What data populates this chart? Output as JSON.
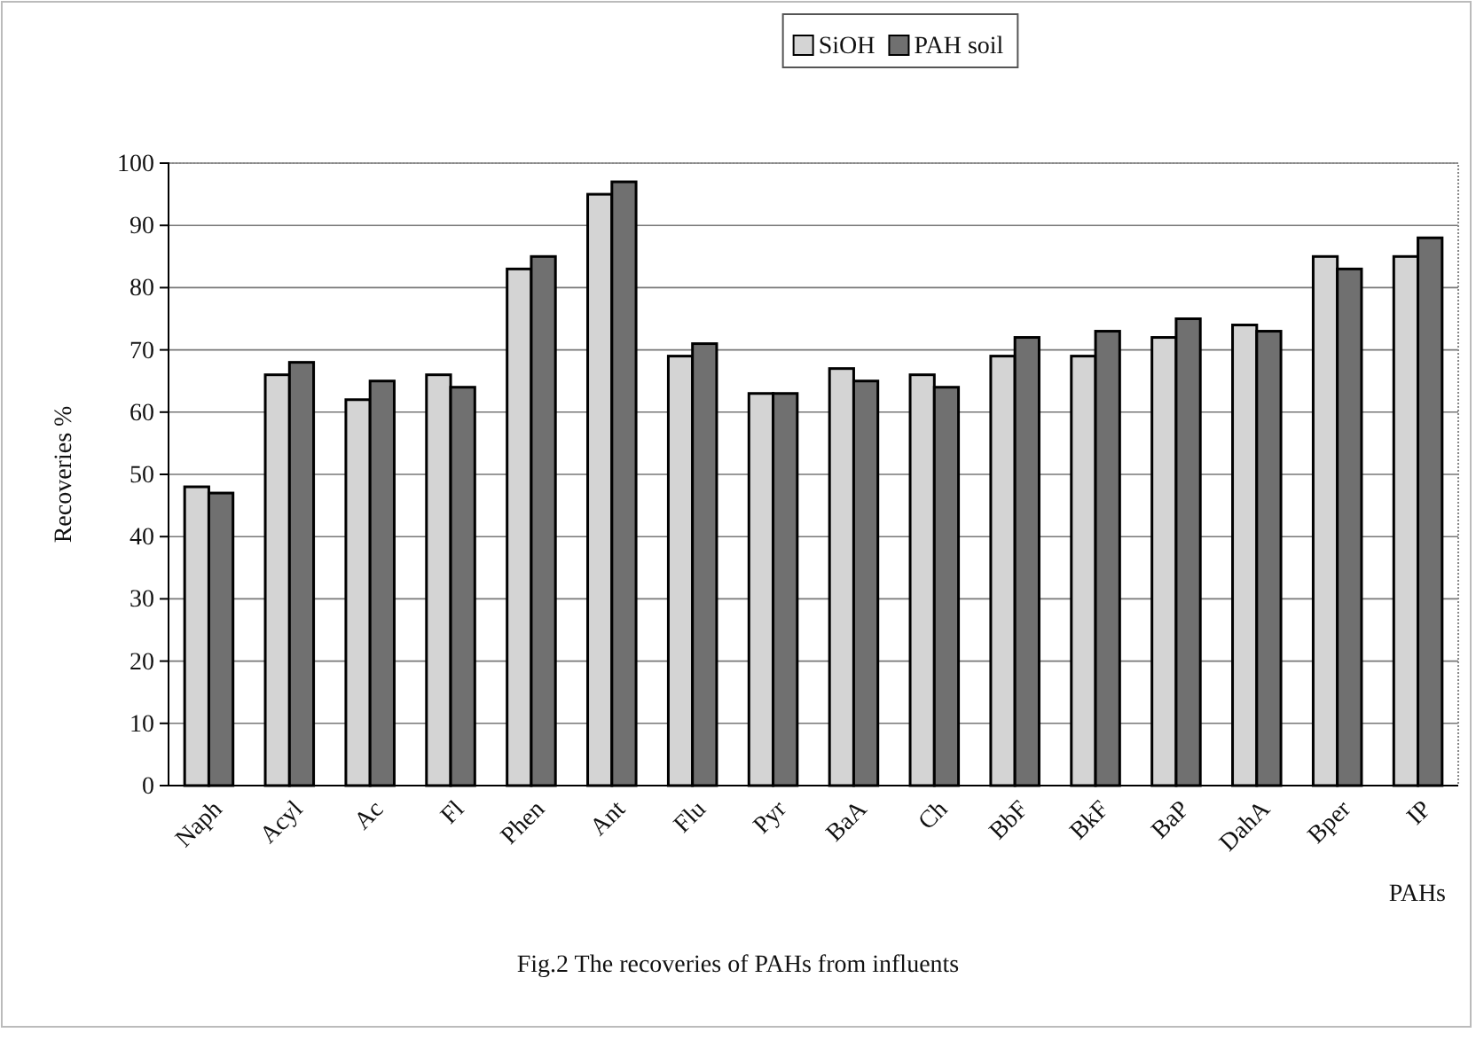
{
  "chart_data": {
    "type": "bar",
    "xlabel": "PAHs",
    "ylabel": "Recoveries %",
    "categories": [
      "Naph",
      "Acyl",
      "Ac",
      "Fl",
      "Phen",
      "Ant",
      "Flu",
      "Pyr",
      "BaA",
      "Ch",
      "BbF",
      "BkF",
      "BaP",
      "DahA",
      "Bper",
      "IP"
    ],
    "series": [
      {
        "name": "SiOH",
        "color": "#d4d4d4",
        "values": [
          48,
          66,
          62,
          66,
          83,
          95,
          69,
          63,
          67,
          66,
          69,
          69,
          72,
          74,
          85,
          85
        ]
      },
      {
        "name": "PAH soil",
        "color": "#707070",
        "values": [
          47,
          68,
          65,
          64,
          85,
          97,
          71,
          63,
          65,
          64,
          72,
          73,
          75,
          73,
          83,
          88
        ]
      }
    ],
    "ylim": [
      0,
      100
    ],
    "yticks": [
      0,
      10,
      20,
      30,
      40,
      50,
      60,
      70,
      80,
      90,
      100
    ],
    "grid": "y",
    "legend": "top",
    "annotations": [
      "Fig.2 The recoveries of PAHs from influents"
    ]
  }
}
